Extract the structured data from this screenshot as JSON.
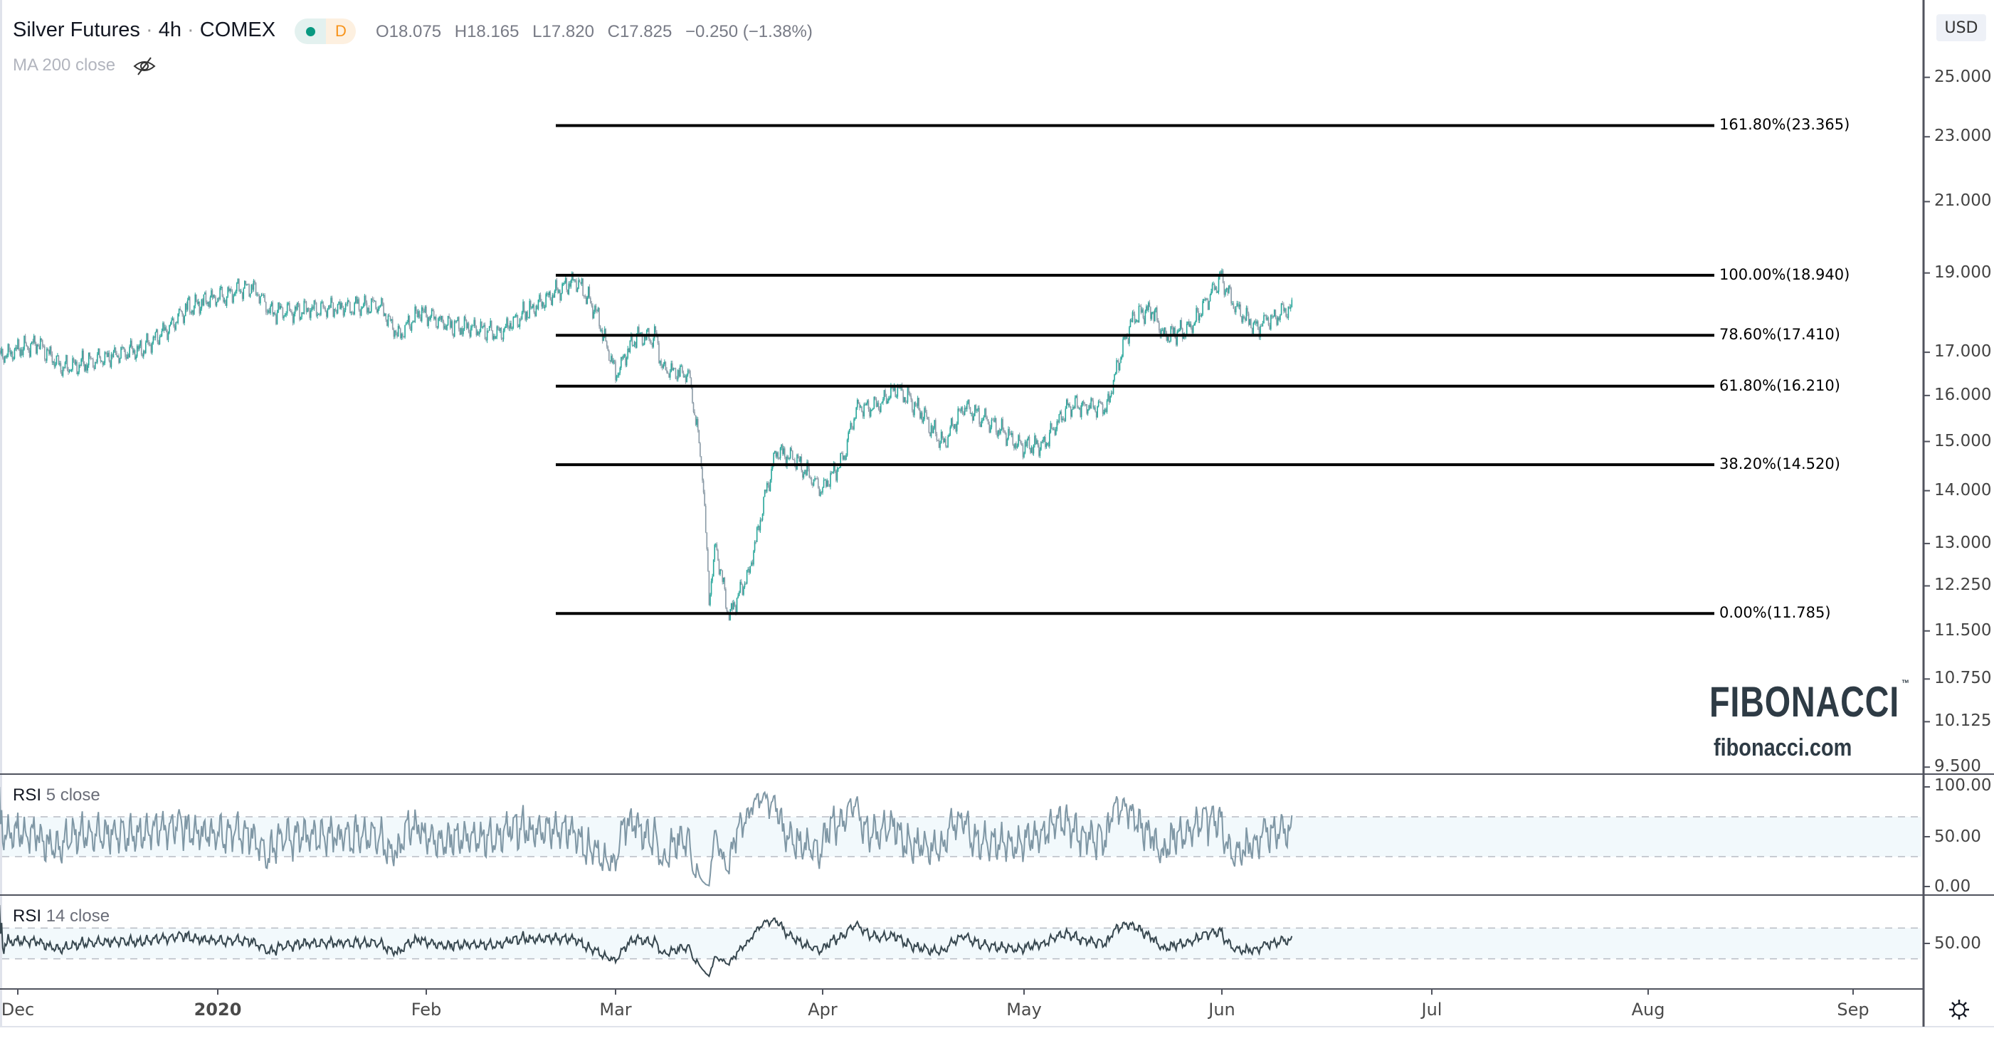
{
  "header": {
    "symbol": "Silver Futures",
    "interval": "4h",
    "exchange": "COMEX",
    "separator": "·",
    "badge_label": "D",
    "ohlc": {
      "open": "O18.075",
      "high": "H18.165",
      "low": "L17.820",
      "close": "C17.825",
      "change": "−0.250 (−1.38%)"
    },
    "ma_label": "MA 200 close",
    "ma_visibility_icon": "eye-crossed-icon"
  },
  "price_axis": {
    "currency": "USD",
    "scale": "log",
    "ticks": [
      "25.000",
      "23.000",
      "21.000",
      "19.000",
      "17.000",
      "16.000",
      "15.000",
      "14.000",
      "13.000",
      "12.250",
      "11.500",
      "10.750",
      "10.125",
      "9.500"
    ]
  },
  "time_axis": {
    "labels": [
      "Dec",
      "2020",
      "Feb",
      "Mar",
      "Apr",
      "May",
      "Jun",
      "Jul",
      "Aug",
      "Sep"
    ]
  },
  "fibonacci": {
    "levels": [
      {
        "label": "161.80%(23.365)",
        "price": 23.365
      },
      {
        "label": "100.00%(18.940)",
        "price": 18.94
      },
      {
        "label": "78.60%(17.410)",
        "price": 17.41
      },
      {
        "label": "61.80%(16.210)",
        "price": 16.21
      },
      {
        "label": "38.20%(14.520)",
        "price": 14.52
      },
      {
        "label": "0.00%(11.785)",
        "price": 11.785
      }
    ]
  },
  "watermark": {
    "logo": "FIBONACCI",
    "trademark": "™",
    "url": "fibonacci.com"
  },
  "rsi_panes": [
    {
      "name": "RSI",
      "params": "5 close",
      "length": 5,
      "ticks": [
        "100.00",
        "50.00",
        "0.00"
      ],
      "bands": [
        30,
        70
      ],
      "color": "#7f97a5"
    },
    {
      "name": "RSI",
      "params": "14 close",
      "length": 14,
      "ticks": [
        "50.00"
      ],
      "bands": [
        30,
        70
      ],
      "color": "#37474f"
    }
  ],
  "settings_icon": "gear-icon",
  "colors": {
    "up": "#26a69a",
    "down": "#8a9aa6",
    "fib_line": "#000000",
    "band_fill": "#f2f9fc"
  },
  "chart_data": {
    "type": "candlestick",
    "y_scale": "log",
    "ylim": [
      9.5,
      25.6
    ],
    "xlim": [
      "2019-11-28",
      "2020-09-12"
    ],
    "grid": false,
    "approx_close_path": [
      {
        "date": "2019-11-28",
        "close": 16.88
      },
      {
        "date": "2019-12-04",
        "close": 17.22
      },
      {
        "date": "2019-12-08",
        "close": 16.62
      },
      {
        "date": "2019-12-20",
        "close": 17.07
      },
      {
        "date": "2019-12-25",
        "close": 17.68
      },
      {
        "date": "2019-12-27",
        "close": 18.07
      },
      {
        "date": "2020-01-06",
        "close": 18.65
      },
      {
        "date": "2020-01-09",
        "close": 18.0
      },
      {
        "date": "2020-01-17",
        "close": 18.07
      },
      {
        "date": "2020-01-25",
        "close": 18.17
      },
      {
        "date": "2020-01-28",
        "close": 17.37
      },
      {
        "date": "2020-01-31",
        "close": 18.0
      },
      {
        "date": "2020-02-04",
        "close": 17.68
      },
      {
        "date": "2020-02-12",
        "close": 17.47
      },
      {
        "date": "2020-02-18",
        "close": 18.17
      },
      {
        "date": "2020-02-24",
        "close": 18.82
      },
      {
        "date": "2020-02-27",
        "close": 18.0
      },
      {
        "date": "2020-03-01",
        "close": 16.47
      },
      {
        "date": "2020-03-04",
        "close": 17.37
      },
      {
        "date": "2020-03-07",
        "close": 17.37
      },
      {
        "date": "2020-03-08",
        "close": 16.62
      },
      {
        "date": "2020-03-12",
        "close": 16.47
      },
      {
        "date": "2020-03-13",
        "close": 15.47
      },
      {
        "date": "2020-03-14",
        "close": 14.4
      },
      {
        "date": "2020-03-15",
        "close": 12.05
      },
      {
        "date": "2020-03-16",
        "close": 12.95
      },
      {
        "date": "2020-03-18",
        "close": 11.73
      },
      {
        "date": "2020-03-21",
        "close": 12.49
      },
      {
        "date": "2020-03-23",
        "close": 13.65
      },
      {
        "date": "2020-03-25",
        "close": 14.78
      },
      {
        "date": "2020-03-28",
        "close": 14.63
      },
      {
        "date": "2020-03-30",
        "close": 14.28
      },
      {
        "date": "2020-04-01",
        "close": 14.02
      },
      {
        "date": "2020-04-04",
        "close": 14.63
      },
      {
        "date": "2020-04-06",
        "close": 15.75
      },
      {
        "date": "2020-04-09",
        "close": 15.75
      },
      {
        "date": "2020-04-12",
        "close": 16.17
      },
      {
        "date": "2020-04-15",
        "close": 15.75
      },
      {
        "date": "2020-04-19",
        "close": 14.93
      },
      {
        "date": "2020-04-22",
        "close": 15.75
      },
      {
        "date": "2020-04-28",
        "close": 15.22
      },
      {
        "date": "2020-04-30",
        "close": 14.93
      },
      {
        "date": "2020-05-04",
        "close": 14.93
      },
      {
        "date": "2020-05-08",
        "close": 15.75
      },
      {
        "date": "2020-05-14",
        "close": 15.75
      },
      {
        "date": "2020-05-16",
        "close": 16.91
      },
      {
        "date": "2020-05-18",
        "close": 17.84
      },
      {
        "date": "2020-05-21",
        "close": 18.07
      },
      {
        "date": "2020-05-23",
        "close": 17.37
      },
      {
        "date": "2020-05-27",
        "close": 17.58
      },
      {
        "date": "2020-05-31",
        "close": 18.65
      },
      {
        "date": "2020-06-01",
        "close": 18.89
      },
      {
        "date": "2020-06-03",
        "close": 18.07
      },
      {
        "date": "2020-06-06",
        "close": 17.58
      },
      {
        "date": "2020-06-08",
        "close": 17.84
      },
      {
        "date": "2020-06-11",
        "close": 18.1
      }
    ]
  }
}
